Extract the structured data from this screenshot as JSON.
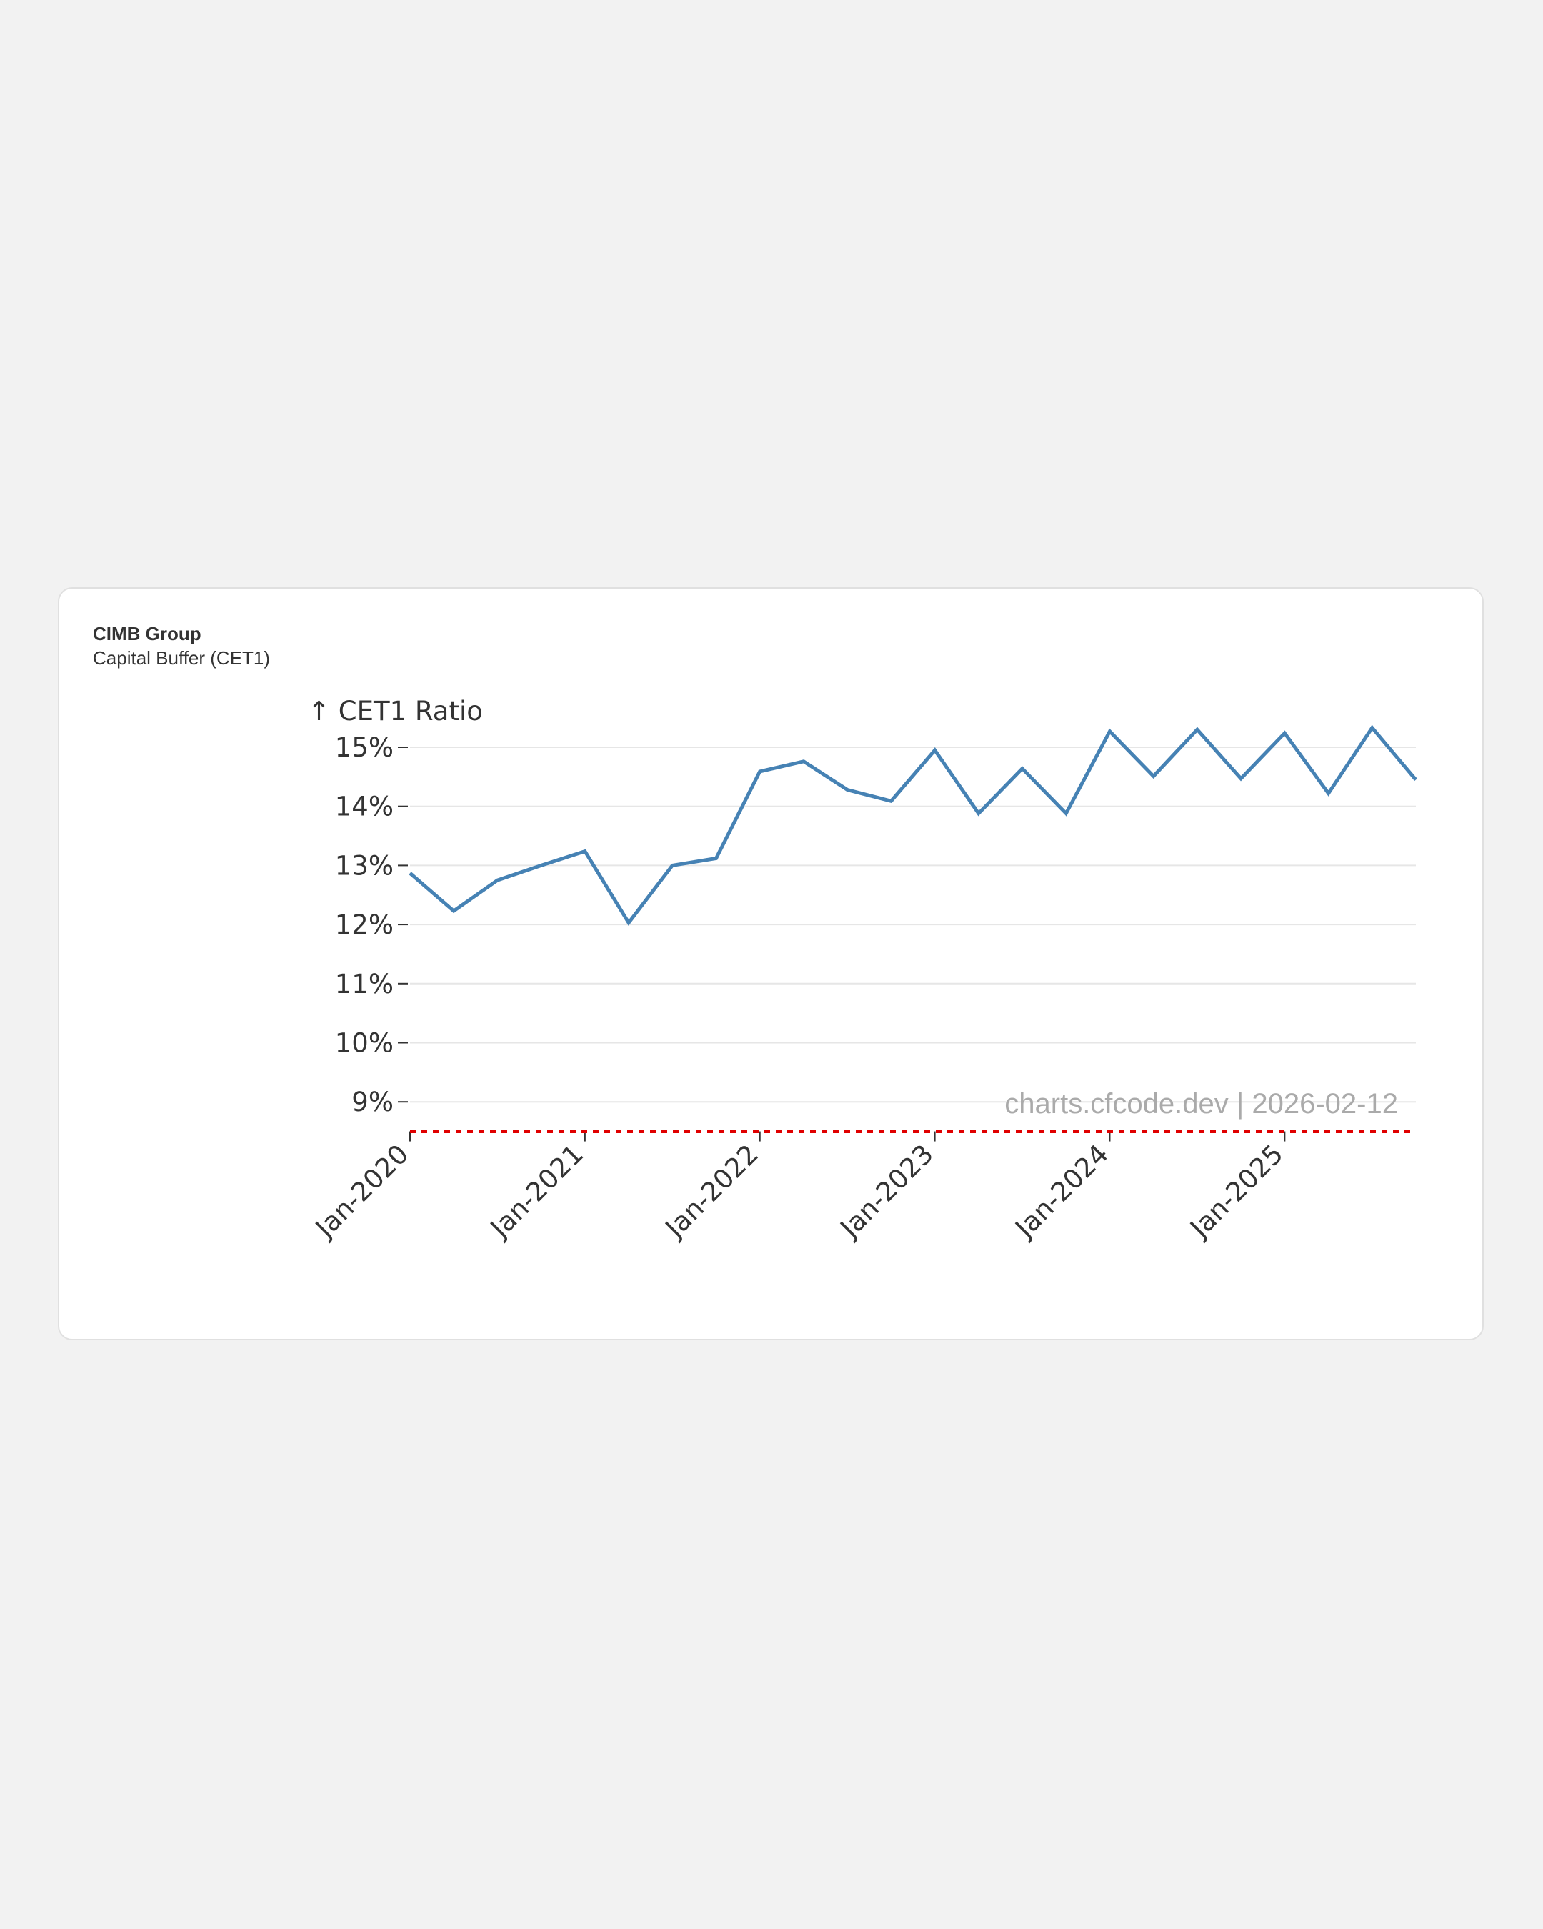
{
  "header": {
    "title": "CIMB Group",
    "subtitle": "Capital Buffer (CET1)"
  },
  "watermark": "charts.cfcode.dev | 2026-02-12",
  "chart_data": {
    "type": "line",
    "title": "CIMB Group",
    "subtitle": "Capital Buffer (CET1)",
    "ylabel": "↑ CET1 Ratio",
    "xlabel": "",
    "ylim": [
      8.5,
      15.4
    ],
    "yticks": [
      9,
      10,
      11,
      12,
      13,
      14,
      15
    ],
    "ytick_labels": [
      "9%",
      "10%",
      "11%",
      "12%",
      "13%",
      "14%",
      "15%"
    ],
    "xtick_labels": [
      "Jan-2020",
      "Jan-2021",
      "Jan-2022",
      "Jan-2023",
      "Jan-2024",
      "Jan-2025"
    ],
    "x_frequency": "quarterly",
    "grid": true,
    "series": [
      {
        "name": "CET1 Ratio",
        "color": "#4682b4",
        "values": [
          12.87,
          12.23,
          12.75,
          13.0,
          13.24,
          12.03,
          13.0,
          13.12,
          14.59,
          14.76,
          14.28,
          14.09,
          14.95,
          13.88,
          14.64,
          13.88,
          15.27,
          14.51,
          15.3,
          14.47,
          15.24,
          14.22,
          15.33,
          14.45
        ]
      }
    ],
    "reference_line": {
      "value": 8.5,
      "color": "#e00000",
      "style": "dotted"
    }
  }
}
